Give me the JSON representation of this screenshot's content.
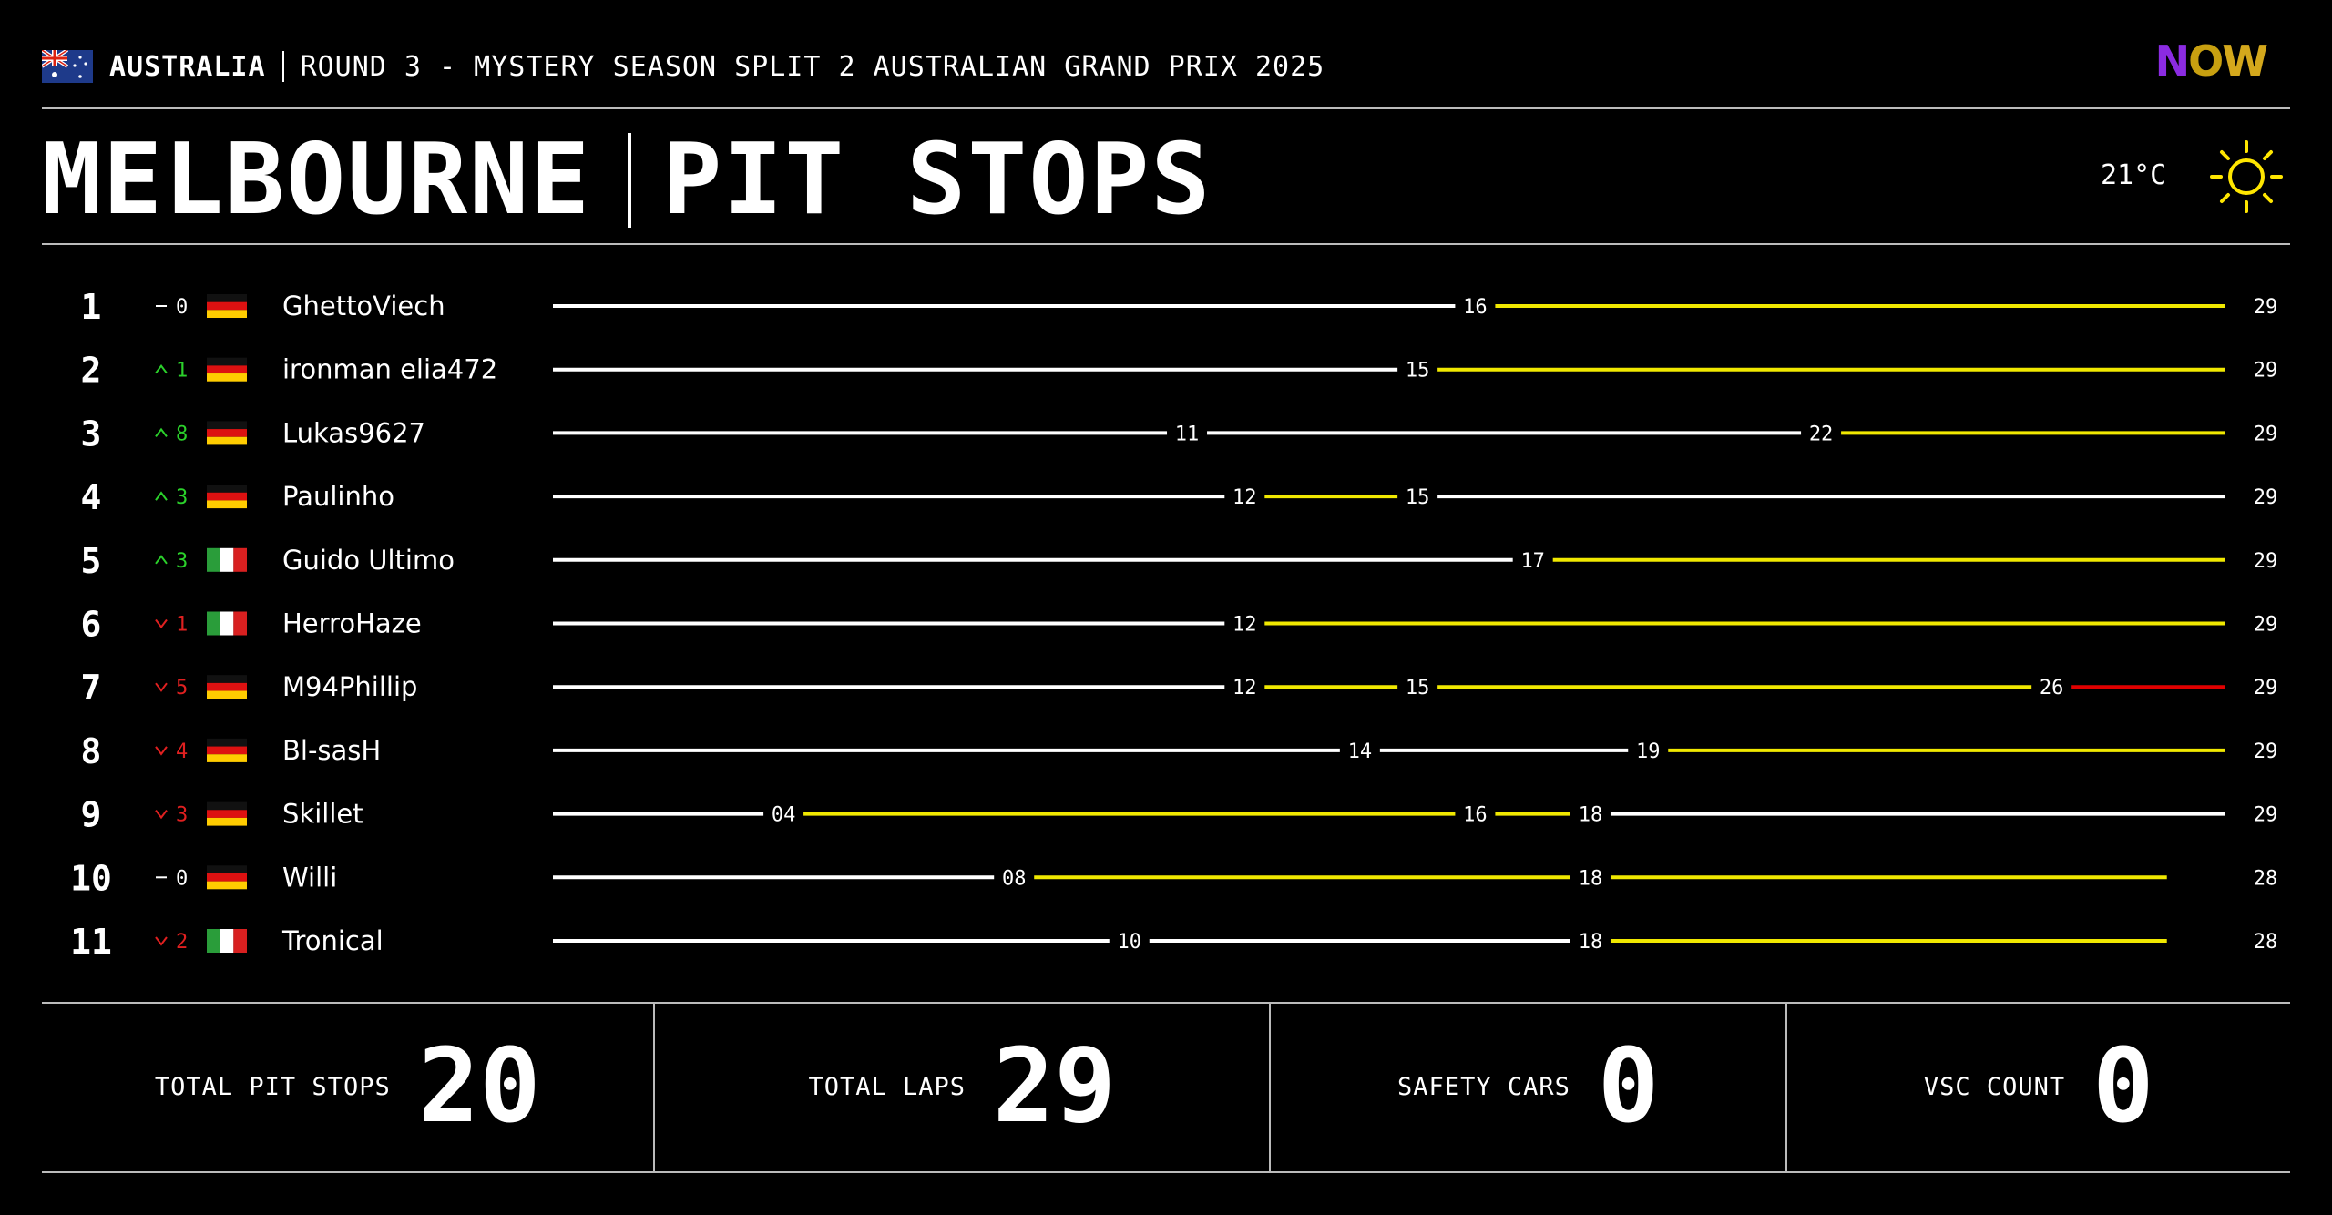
{
  "header": {
    "country": "AUSTRALIA",
    "round": "ROUND 3 - MYSTERY SEASON SPLIT 2 AUSTRALIAN GRAND PRIX 2025",
    "city": "MELBOURNE",
    "page_title": "PIT STOPS",
    "temperature": "21°C",
    "logo": {
      "n": "N",
      "o": "O",
      "w": "W"
    }
  },
  "colors": {
    "stint_white": "#ffffff",
    "stint_yellow": "#f0e800",
    "stint_red": "#e00000",
    "gain_green": "#2bd12b",
    "loss_red": "#e02020"
  },
  "chart_data": {
    "type": "stint-timeline",
    "total_laps": 29,
    "rows": [
      {
        "pos": "1",
        "change": "0",
        "dir": "same",
        "flag": "germany",
        "name": "GhettoViech",
        "stints": [
          {
            "to": 16,
            "label": "16",
            "color": "white"
          },
          {
            "to": 29,
            "label": "29",
            "color": "yellow"
          }
        ]
      },
      {
        "pos": "2",
        "change": "1",
        "dir": "up",
        "flag": "germany",
        "name": "ironman elia472",
        "stints": [
          {
            "to": 15,
            "label": "15",
            "color": "white"
          },
          {
            "to": 29,
            "label": "29",
            "color": "yellow"
          }
        ]
      },
      {
        "pos": "3",
        "change": "8",
        "dir": "up",
        "flag": "germany",
        "name": "Lukas9627",
        "stints": [
          {
            "to": 11,
            "label": "11",
            "color": "white"
          },
          {
            "to": 22,
            "label": "22",
            "color": "white"
          },
          {
            "to": 29,
            "label": "29",
            "color": "yellow"
          }
        ]
      },
      {
        "pos": "4",
        "change": "3",
        "dir": "up",
        "flag": "germany",
        "name": "Paulinho",
        "stints": [
          {
            "to": 12,
            "label": "12",
            "color": "white"
          },
          {
            "to": 15,
            "label": "15",
            "color": "yellow"
          },
          {
            "to": 29,
            "label": "29",
            "color": "white"
          }
        ]
      },
      {
        "pos": "5",
        "change": "3",
        "dir": "up",
        "flag": "italy",
        "name": "Guido Ultimo",
        "stints": [
          {
            "to": 17,
            "label": "17",
            "color": "white"
          },
          {
            "to": 29,
            "label": "29",
            "color": "yellow"
          }
        ]
      },
      {
        "pos": "6",
        "change": "1",
        "dir": "down",
        "flag": "italy",
        "name": "HerroHaze",
        "stints": [
          {
            "to": 12,
            "label": "12",
            "color": "white"
          },
          {
            "to": 29,
            "label": "29",
            "color": "yellow"
          }
        ]
      },
      {
        "pos": "7",
        "change": "5",
        "dir": "down",
        "flag": "germany",
        "name": "M94Phillip",
        "stints": [
          {
            "to": 12,
            "label": "12",
            "color": "white"
          },
          {
            "to": 15,
            "label": "15",
            "color": "yellow"
          },
          {
            "to": 26,
            "label": "26",
            "color": "yellow"
          },
          {
            "to": 29,
            "label": "29",
            "color": "red"
          }
        ]
      },
      {
        "pos": "8",
        "change": "4",
        "dir": "down",
        "flag": "germany",
        "name": "Bl-sasH",
        "stints": [
          {
            "to": 14,
            "label": "14",
            "color": "white"
          },
          {
            "to": 19,
            "label": "19",
            "color": "white"
          },
          {
            "to": 29,
            "label": "29",
            "color": "yellow"
          }
        ]
      },
      {
        "pos": "9",
        "change": "3",
        "dir": "down",
        "flag": "germany",
        "name": "Skillet",
        "stints": [
          {
            "to": 4,
            "label": "04",
            "color": "white"
          },
          {
            "to": 16,
            "label": "16",
            "color": "yellow"
          },
          {
            "to": 18,
            "label": "18",
            "color": "yellow"
          },
          {
            "to": 29,
            "label": "29",
            "color": "white"
          }
        ]
      },
      {
        "pos": "10",
        "change": "0",
        "dir": "same",
        "flag": "germany",
        "name": "Willi",
        "stints": [
          {
            "to": 8,
            "label": "08",
            "color": "white"
          },
          {
            "to": 18,
            "label": "18",
            "color": "yellow"
          },
          {
            "to": 28,
            "label": "28",
            "color": "yellow"
          }
        ]
      },
      {
        "pos": "11",
        "change": "2",
        "dir": "down",
        "flag": "italy",
        "name": "Tronical",
        "stints": [
          {
            "to": 10,
            "label": "10",
            "color": "white"
          },
          {
            "to": 18,
            "label": "18",
            "color": "white"
          },
          {
            "to": 28,
            "label": "28",
            "color": "yellow"
          }
        ]
      }
    ]
  },
  "stats": [
    {
      "label": "TOTAL PIT STOPS",
      "value": "20"
    },
    {
      "label": "TOTAL LAPS",
      "value": "29"
    },
    {
      "label": "SAFETY CARS",
      "value": "0"
    },
    {
      "label": "VSC COUNT",
      "value": "0"
    }
  ]
}
